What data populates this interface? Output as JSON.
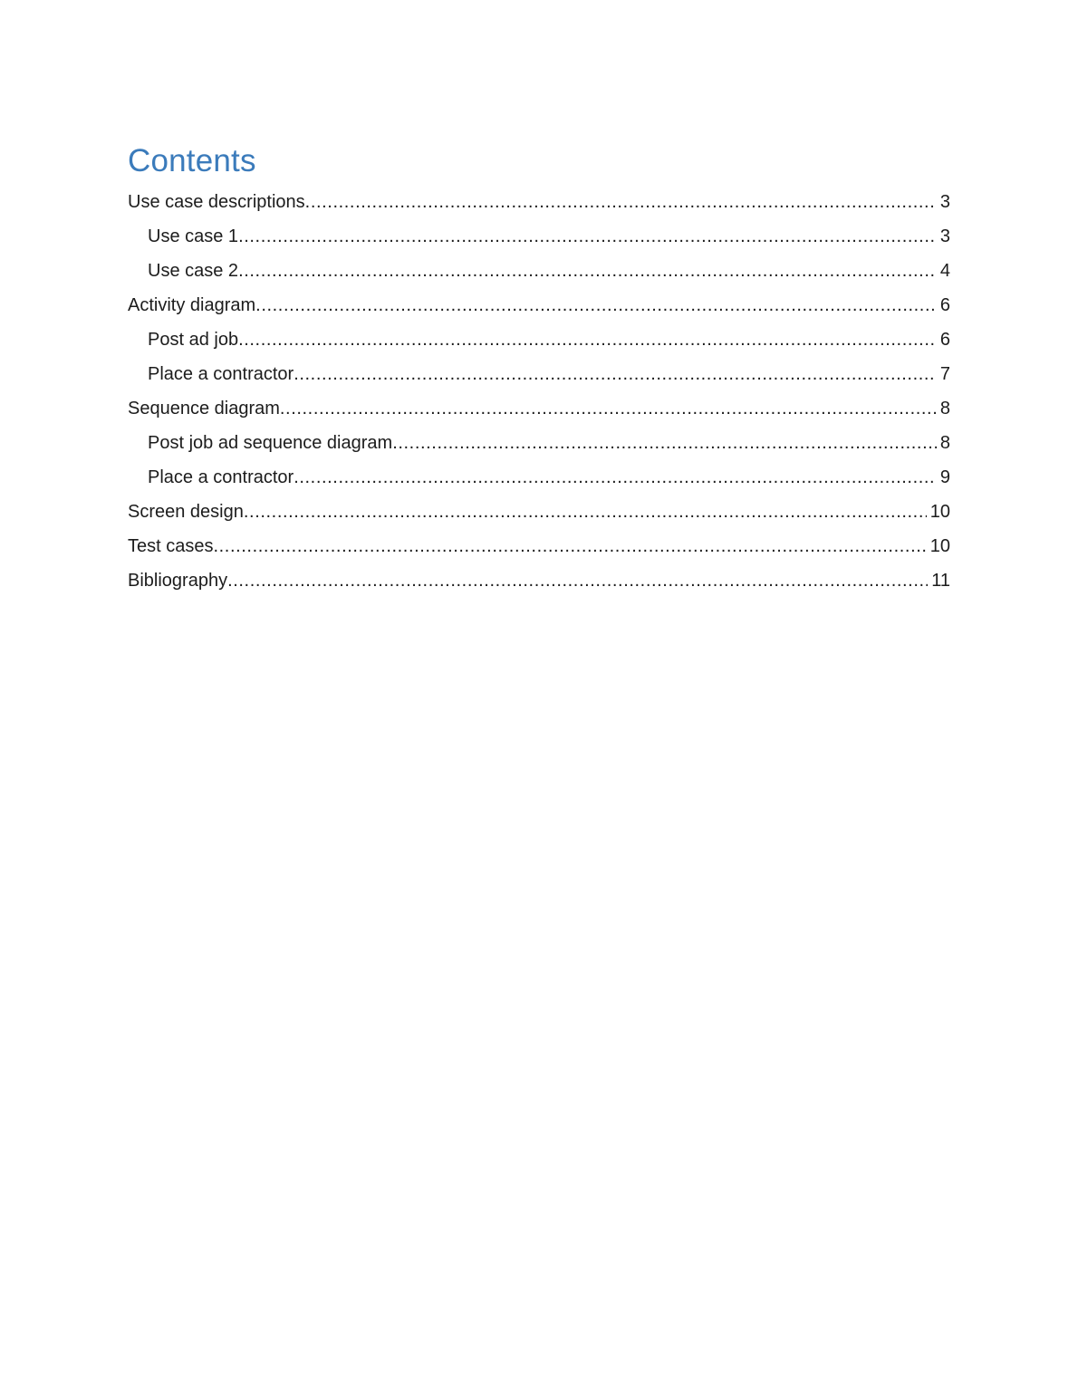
{
  "document": {
    "title": "Contents"
  },
  "toc": {
    "entries": [
      {
        "label": "Use case descriptions",
        "page": "3",
        "level": 1
      },
      {
        "label": "Use case 1",
        "page": "3",
        "level": 2
      },
      {
        "label": "Use case 2",
        "page": "4",
        "level": 2
      },
      {
        "label": "Activity diagram",
        "page": "6",
        "level": 1
      },
      {
        "label": "Post ad job",
        "page": "6",
        "level": 2
      },
      {
        "label": "Place a contractor",
        "page": "7",
        "level": 2
      },
      {
        "label": "Sequence diagram",
        "page": "8",
        "level": 1
      },
      {
        "label": "Post job ad sequence diagram",
        "page": "8",
        "level": 2
      },
      {
        "label": "Place a contractor",
        "page": "9",
        "level": 2
      },
      {
        "label": "Screen design",
        "page": "10",
        "level": 1
      },
      {
        "label": "Test cases",
        "page": "10",
        "level": 1
      },
      {
        "label": "Bibliography",
        "page": "11",
        "level": 1
      }
    ]
  },
  "colors": {
    "heading": "#3b7bbb",
    "text": "#1c1c1c",
    "background": "#ffffff"
  }
}
